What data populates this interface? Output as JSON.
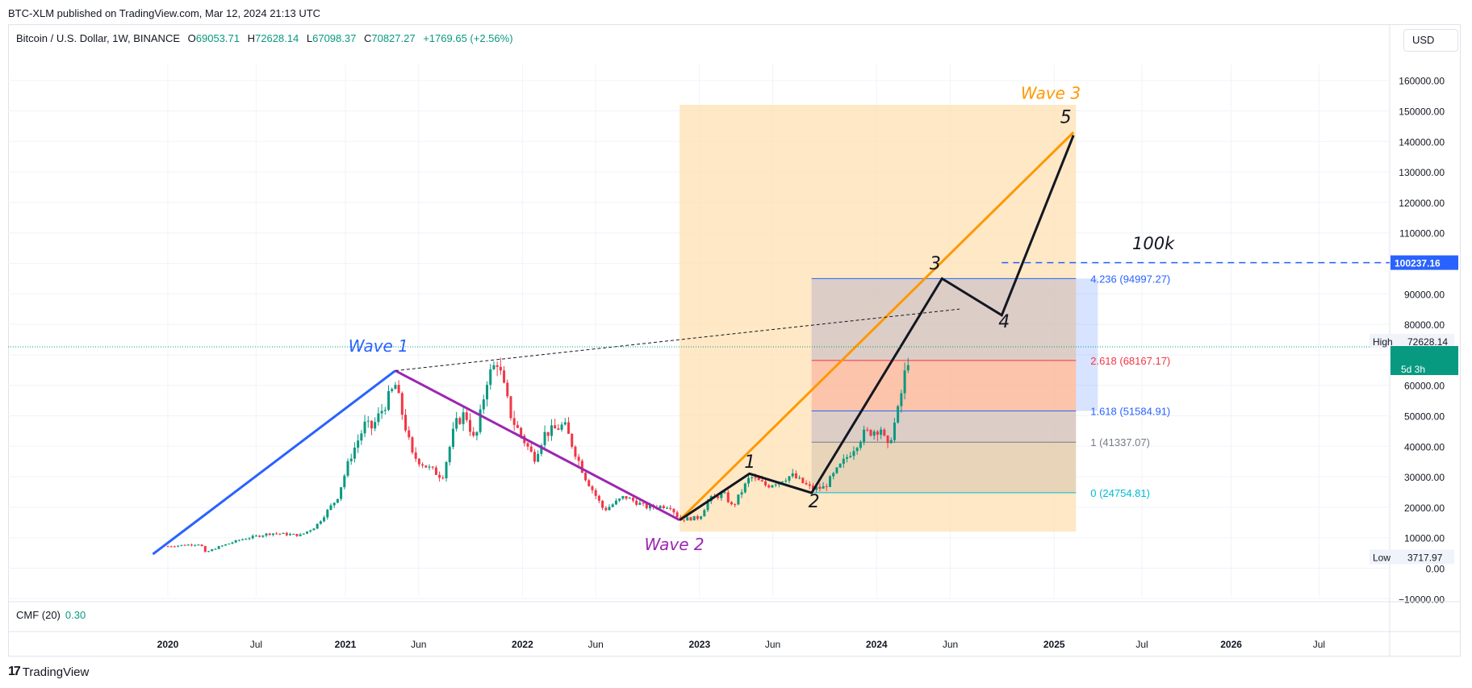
{
  "header": {
    "published_line": "BTC-XLM published on TradingView.com, Mar 12, 2024 21:13 UTC",
    "symbol": "Bitcoin / U.S. Dollar, 1W, BINANCE",
    "open_label": "O",
    "open": "69053.71",
    "high_label": "H",
    "high": "72628.14",
    "low_label": "L",
    "low": "67098.37",
    "close_label": "C",
    "close": "70827.27",
    "change": "+1769.65 (+2.56%)"
  },
  "currency": "USD",
  "indicator": {
    "name": "CMF (20)",
    "value": "0.30"
  },
  "footer": {
    "logo_text": "TradingView"
  },
  "colors": {
    "up": "#089981",
    "down": "#f23645",
    "wave1": "#2962ff",
    "wave2": "#9c27b0",
    "wave3": "#ff9800",
    "elliott": "#131722",
    "box": "#ffe0b2",
    "fib_4236": "#2962ff",
    "fib_2618": "#f23645",
    "fib_1618": "#2962ff",
    "fib_1": "#787b86",
    "fib_0": "#00bcd4",
    "badge_green": "#089981",
    "badge_blue": "#2962ff"
  },
  "chart_data": {
    "type": "candlestick",
    "scale": "linear",
    "y_ticks": [
      -10000,
      0,
      10000,
      20000,
      30000,
      40000,
      50000,
      60000,
      70000,
      80000,
      90000,
      100000,
      110000,
      120000,
      130000,
      140000,
      150000,
      160000
    ],
    "y_tick_labels": [
      "−10000.00",
      "0.00",
      "10000.00",
      "20000.00",
      "30000.00",
      "40000.00",
      "50000.00",
      "60000.00",
      "70000.00",
      "80000.00",
      "90000.00",
      "100000.00",
      "110000.00",
      "120000.00",
      "130000.00",
      "140000.00",
      "150000.00",
      "160000.00"
    ],
    "x_ticks": [
      "2020-01",
      "2020-07",
      "2021-01",
      "2021-06",
      "2022-01",
      "2022-06",
      "2023-01",
      "2023-06",
      "2024-01",
      "2024-06",
      "2025-01",
      "2025-07",
      "2026-01",
      "2026-07"
    ],
    "x_tick_labels": [
      "2020",
      "Jul",
      "2021",
      "Jun",
      "2022",
      "Jun",
      "2023",
      "Jun",
      "2024",
      "Jun",
      "2025",
      "Jul",
      "2026",
      "Jul"
    ],
    "bold_x_ticks": [
      "2020",
      "2021",
      "2022",
      "2023",
      "2024",
      "2025",
      "2026"
    ],
    "price_path": [
      [
        "2020-01-01",
        7200
      ],
      [
        "2020-03-09",
        8000
      ],
      [
        "2020-03-16",
        5000
      ],
      [
        "2020-04-15",
        7000
      ],
      [
        "2020-06-01",
        9500
      ],
      [
        "2020-08-01",
        11500
      ],
      [
        "2020-10-01",
        10800
      ],
      [
        "2020-11-01",
        13800
      ],
      [
        "2020-12-15",
        23000
      ],
      [
        "2021-01-10",
        36000
      ],
      [
        "2021-02-10",
        47000
      ],
      [
        "2021-02-25",
        46000
      ],
      [
        "2021-04-14",
        60000
      ],
      [
        "2021-05-19",
        37000
      ],
      [
        "2021-06-20",
        33000
      ],
      [
        "2021-07-20",
        30000
      ],
      [
        "2021-08-15",
        47000
      ],
      [
        "2021-09-05",
        51000
      ],
      [
        "2021-09-25",
        41000
      ],
      [
        "2021-10-20",
        62000
      ],
      [
        "2021-11-10",
        68000
      ],
      [
        "2021-12-10",
        49000
      ],
      [
        "2022-01-25",
        36000
      ],
      [
        "2022-02-15",
        44000
      ],
      [
        "2022-03-28",
        47000
      ],
      [
        "2022-05-10",
        30000
      ],
      [
        "2022-06-18",
        19000
      ],
      [
        "2022-07-30",
        23500
      ],
      [
        "2022-09-15",
        20000
      ],
      [
        "2022-11-01",
        20500
      ],
      [
        "2022-11-21",
        16000
      ],
      [
        "2023-01-01",
        16600
      ],
      [
        "2023-01-20",
        22500
      ],
      [
        "2023-02-20",
        24500
      ],
      [
        "2023-03-10",
        20000
      ],
      [
        "2023-04-15",
        30000
      ],
      [
        "2023-05-20",
        27000
      ],
      [
        "2023-07-10",
        30500
      ],
      [
        "2023-08-20",
        26000
      ],
      [
        "2023-09-15",
        26500
      ],
      [
        "2023-10-23",
        34500
      ],
      [
        "2023-12-05",
        44000
      ],
      [
        "2024-01-10",
        46000
      ],
      [
        "2024-01-23",
        39000
      ],
      [
        "2024-02-15",
        52000
      ],
      [
        "2024-03-04",
        68000
      ],
      [
        "2024-03-11",
        70827
      ]
    ],
    "current_price": "70827.27",
    "high_badge": {
      "label": "High",
      "value": "72628.14"
    },
    "low_badge": {
      "label": "Low",
      "value": "3717.97"
    },
    "countdown": "5d 3h",
    "target_line": {
      "value": 100237.16,
      "label": "100237.16",
      "text": "100k"
    },
    "projection_box": {
      "from": "2022-11-21",
      "to": "2025-02-15",
      "low": 12000,
      "high": 152000
    },
    "fib_levels": [
      {
        "ratio": "4.236",
        "price": 94997.27,
        "label": "4.236 (94997.27)"
      },
      {
        "ratio": "2.618",
        "price": 68167.17,
        "label": "2.618 (68167.17)"
      },
      {
        "ratio": "1.618",
        "price": 51584.91,
        "label": "1.618 (51584.91)"
      },
      {
        "ratio": "1",
        "price": 41337.07,
        "label": "1 (41337.07)"
      },
      {
        "ratio": "0",
        "price": 24754.81,
        "label": "0 (24754.81)"
      }
    ],
    "fib_range": {
      "from": "2023-08-20",
      "to": "2025-02-15"
    },
    "trend_lines": [
      {
        "name": "Wave 1",
        "points": [
          [
            "2019-12-01",
            4600
          ],
          [
            "2021-04-14",
            64800
          ]
        ]
      },
      {
        "name": "Wave 2",
        "points": [
          [
            "2021-04-14",
            64800
          ],
          [
            "2022-11-21",
            15800
          ]
        ]
      },
      {
        "name": "Wave 3",
        "points": [
          [
            "2022-11-21",
            15800
          ],
          [
            "2025-02-10",
            143000
          ]
        ]
      },
      {
        "name": "Elliott",
        "points": [
          [
            "2022-11-21",
            15800
          ],
          [
            "2023-04-14",
            31000
          ],
          [
            "2023-08-20",
            24700
          ],
          [
            "2024-05-15",
            95000
          ],
          [
            "2024-09-15",
            83000
          ],
          [
            "2025-02-10",
            142000
          ]
        ]
      },
      {
        "name": "Trendline",
        "points": [
          [
            "2021-04-14",
            64800
          ],
          [
            "2024-06-20",
            85000
          ]
        ]
      }
    ],
    "annotations": [
      {
        "text": "Wave 1",
        "date": "2021-03-10",
        "price": 71000
      },
      {
        "text": "Wave 2",
        "date": "2022-11-10",
        "price": 6000
      },
      {
        "text": "Wave 3",
        "date": "2024-12-25",
        "price": 154000
      },
      {
        "text": "1",
        "date": "2023-04-15",
        "price": 33000
      },
      {
        "text": "2",
        "date": "2023-08-25",
        "price": 20000
      },
      {
        "text": "3",
        "date": "2024-05-01",
        "price": 98000
      },
      {
        "text": "4",
        "date": "2024-09-20",
        "price": 79000
      },
      {
        "text": "5",
        "date": "2025-01-25",
        "price": 146000
      }
    ]
  }
}
